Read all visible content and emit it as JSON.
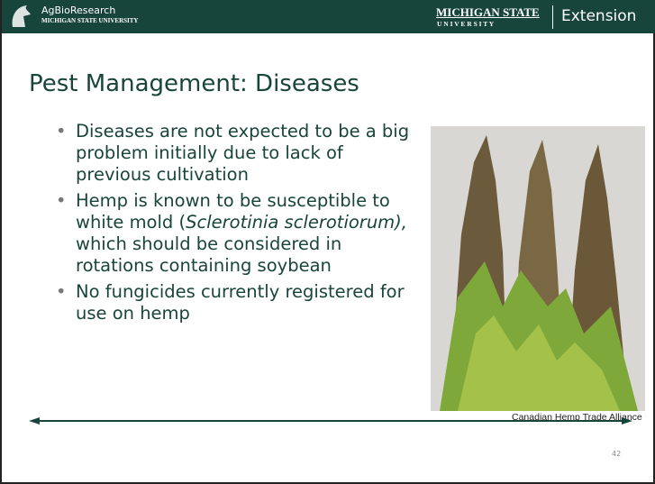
{
  "header": {
    "left_title": "AgBioResearch",
    "left_subtitle": "MICHIGAN STATE UNIVERSITY",
    "right_title": "MICHIGAN STATE",
    "right_subtitle": "U N I V E R S I T Y",
    "right_unit": "Extension"
  },
  "slide": {
    "title": "Pest Management: Diseases",
    "bullets": [
      [
        "Diseases are not expected to be a big problem initially due to lack of previous cultivation"
      ],
      [
        "Hemp is known to be susceptible to white mold (",
        "Sclerotinia sclerotiorum),",
        " which should be considered in rotations containing soybean"
      ],
      [
        "No fungicides currently registered for use on hemp"
      ]
    ],
    "image_caption": "Canadian Hemp Trade Alliance",
    "page_number": "42"
  }
}
